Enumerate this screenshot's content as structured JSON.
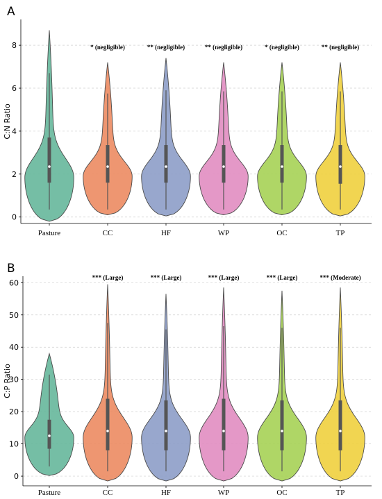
{
  "colors": {
    "Pasture": "#66b79b",
    "CC": "#ec8b62",
    "HF": "#8d9dc8",
    "WP": "#e18dc1",
    "OC": "#a6d255",
    "TP": "#f0d03e"
  },
  "chart_data": [
    {
      "type": "violin",
      "panel": "A",
      "ylabel": "C:N Ratio",
      "ylim": [
        -0.3,
        9.2
      ],
      "yticks": [
        "0",
        "2",
        "4",
        "6",
        "8"
      ],
      "grid": true,
      "categories": [
        "Pasture",
        "CC",
        "HF",
        "WP",
        "OC",
        "TP"
      ],
      "annotations": [
        "",
        "* (negligible)",
        "** (negligible)",
        "** (negligible)",
        "* (negligible)",
        "** (negligible)"
      ],
      "series": [
        {
          "category": "Pasture",
          "min": -0.2,
          "max": 8.7,
          "q1": 1.6,
          "median": 2.35,
          "q3": 3.7,
          "whisker_low": 0.35,
          "whisker_high": 6.7,
          "peak": 1.85,
          "maxwidth": 0.42,
          "neckwidth": 0.07
        },
        {
          "category": "CC",
          "min": 0.1,
          "max": 7.2,
          "q1": 1.6,
          "median": 2.35,
          "q3": 3.35,
          "whisker_low": 0.35,
          "whisker_high": 5.75,
          "peak": 1.9,
          "maxwidth": 0.42,
          "neckwidth": 0.1
        },
        {
          "category": "HF",
          "min": 0.05,
          "max": 7.4,
          "q1": 1.6,
          "median": 2.35,
          "q3": 3.35,
          "whisker_low": 0.35,
          "whisker_high": 5.9,
          "peak": 1.9,
          "maxwidth": 0.42,
          "neckwidth": 0.1
        },
        {
          "category": "WP",
          "min": 0.1,
          "max": 7.2,
          "q1": 1.6,
          "median": 2.35,
          "q3": 3.35,
          "whisker_low": 0.35,
          "whisker_high": 5.85,
          "peak": 1.9,
          "maxwidth": 0.42,
          "neckwidth": 0.1
        },
        {
          "category": "OC",
          "min": 0.1,
          "max": 7.2,
          "q1": 1.6,
          "median": 2.35,
          "q3": 3.35,
          "whisker_low": 0.35,
          "whisker_high": 5.85,
          "peak": 1.9,
          "maxwidth": 0.42,
          "neckwidth": 0.1
        },
        {
          "category": "TP",
          "min": 0.05,
          "max": 7.2,
          "q1": 1.55,
          "median": 2.35,
          "q3": 3.35,
          "whisker_low": 0.35,
          "whisker_high": 5.85,
          "peak": 1.9,
          "maxwidth": 0.42,
          "neckwidth": 0.1
        }
      ]
    },
    {
      "type": "violin",
      "panel": "B",
      "ylabel": "C:P Ratio",
      "ylim": [
        -3,
        62
      ],
      "yticks": [
        "0",
        "10",
        "20",
        "30",
        "40",
        "50",
        "60"
      ],
      "grid": true,
      "categories": [
        "Pasture",
        "CC",
        "HF",
        "WP",
        "OC",
        "TP"
      ],
      "annotations": [
        "",
        "*** (Large)",
        "*** (Large)",
        "*** (Large)",
        "*** (Large)",
        "*** (Moderate)"
      ],
      "series": [
        {
          "category": "Pasture",
          "min": 0.2,
          "max": 38,
          "q1": 8.5,
          "median": 12.5,
          "q3": 17.5,
          "whisker_low": 3,
          "whisker_high": 31.5,
          "peak": 12,
          "maxwidth": 0.42,
          "neckwidth": 0.18
        },
        {
          "category": "CC",
          "min": -1.5,
          "max": 59.5,
          "q1": 8,
          "median": 14,
          "q3": 24,
          "whisker_low": 1.5,
          "whisker_high": 47.5,
          "peak": 12,
          "maxwidth": 0.42,
          "neckwidth": 0.05
        },
        {
          "category": "HF",
          "min": -1.5,
          "max": 56.5,
          "q1": 8,
          "median": 14,
          "q3": 23.5,
          "whisker_low": 1.5,
          "whisker_high": 45.5,
          "peak": 12,
          "maxwidth": 0.42,
          "neckwidth": 0.05
        },
        {
          "category": "WP",
          "min": -1.5,
          "max": 58.5,
          "q1": 8,
          "median": 14,
          "q3": 24,
          "whisker_low": 1.5,
          "whisker_high": 46.5,
          "peak": 12,
          "maxwidth": 0.42,
          "neckwidth": 0.05
        },
        {
          "category": "OC",
          "min": -1.5,
          "max": 57.5,
          "q1": 8,
          "median": 14,
          "q3": 23.5,
          "whisker_low": 1.5,
          "whisker_high": 46,
          "peak": 12,
          "maxwidth": 0.42,
          "neckwidth": 0.05
        },
        {
          "category": "TP",
          "min": -1.5,
          "max": 58.5,
          "q1": 8,
          "median": 14,
          "q3": 23.5,
          "whisker_low": 1.5,
          "whisker_high": 46,
          "peak": 12,
          "maxwidth": 0.42,
          "neckwidth": 0.05
        }
      ]
    }
  ]
}
